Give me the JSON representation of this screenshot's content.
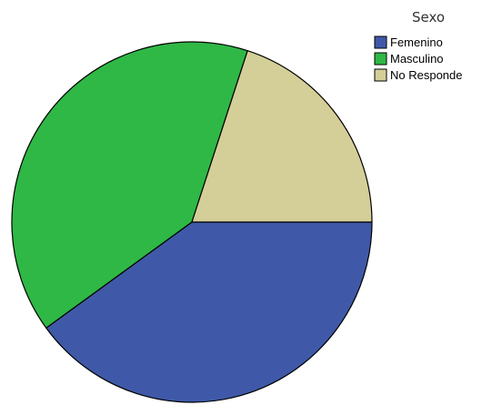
{
  "chart_data": {
    "type": "pie",
    "categories": [
      "Femenino",
      "Masculino",
      "No Responde"
    ],
    "values": [
      40,
      40,
      20
    ],
    "colors": [
      "#3f59a8",
      "#2fb846",
      "#d4cf98"
    ],
    "stroke_color": "#000000",
    "legend": {
      "title": "Sexo",
      "placement": "top-right",
      "entries": [
        "Femenino",
        "Masculino",
        "No Responde"
      ]
    },
    "start_angle_deg": 0,
    "direction": "clockwise"
  }
}
